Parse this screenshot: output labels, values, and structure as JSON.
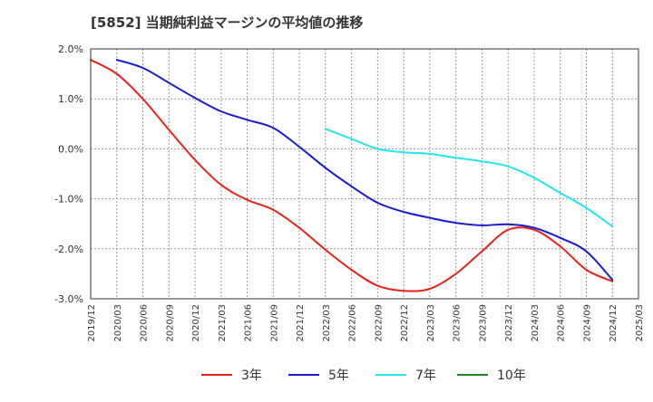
{
  "chart_data": {
    "type": "line",
    "title": "[5852]  当期純利益マージンの平均値の推移",
    "x_ticks": [
      "2019/12",
      "2020/03",
      "2020/06",
      "2020/09",
      "2020/12",
      "2021/03",
      "2021/06",
      "2021/09",
      "2021/12",
      "2022/03",
      "2022/06",
      "2022/09",
      "2022/12",
      "2023/03",
      "2023/06",
      "2023/09",
      "2023/12",
      "2024/03",
      "2024/06",
      "2024/09",
      "2024/12",
      "2025/03"
    ],
    "y_ticks": [
      "2.0%",
      "1.0%",
      "0.0%",
      "-1.0%",
      "-2.0%",
      "-3.0%"
    ],
    "y_tick_values": [
      2.0,
      1.0,
      0.0,
      -1.0,
      -2.0,
      -3.0
    ],
    "ylim": [
      -3.0,
      2.0
    ],
    "grid": true,
    "legend_position": "bottom",
    "series": [
      {
        "name": "3年",
        "color": "#e8211c",
        "x": [
          "2019/12",
          "2020/03",
          "2020/06",
          "2020/09",
          "2020/12",
          "2021/03",
          "2021/06",
          "2021/09",
          "2021/12",
          "2022/03",
          "2022/06",
          "2022/09",
          "2022/12",
          "2023/03",
          "2023/06",
          "2023/09",
          "2023/12",
          "2024/03",
          "2024/06",
          "2024/09",
          "2024/12"
        ],
        "values": [
          1.78,
          1.5,
          1.0,
          0.38,
          -0.22,
          -0.72,
          -1.02,
          -1.22,
          -1.58,
          -2.02,
          -2.42,
          -2.74,
          -2.84,
          -2.8,
          -2.5,
          -2.05,
          -1.62,
          -1.62,
          -1.95,
          -2.42,
          -2.65
        ]
      },
      {
        "name": "5年",
        "color": "#1a1acc",
        "x": [
          "2020/03",
          "2020/06",
          "2020/09",
          "2020/12",
          "2021/03",
          "2021/06",
          "2021/09",
          "2021/12",
          "2022/03",
          "2022/06",
          "2022/09",
          "2022/12",
          "2023/03",
          "2023/06",
          "2023/09",
          "2023/12",
          "2024/03",
          "2024/06",
          "2024/09",
          "2024/12"
        ],
        "values": [
          1.78,
          1.62,
          1.32,
          1.02,
          0.75,
          0.58,
          0.42,
          0.04,
          -0.38,
          -0.75,
          -1.08,
          -1.26,
          -1.38,
          -1.48,
          -1.53,
          -1.51,
          -1.58,
          -1.78,
          -2.05,
          -2.62
        ]
      },
      {
        "name": "7年",
        "color": "#22e5ee",
        "x": [
          "2022/03",
          "2022/06",
          "2022/09",
          "2022/12",
          "2023/03",
          "2023/06",
          "2023/09",
          "2023/12",
          "2024/03",
          "2024/06",
          "2024/09",
          "2024/12"
        ],
        "values": [
          0.4,
          0.2,
          0.0,
          -0.07,
          -0.1,
          -0.18,
          -0.25,
          -0.35,
          -0.58,
          -0.88,
          -1.18,
          -1.55
        ]
      },
      {
        "name": "10年",
        "color": "#1e8c1e",
        "x": [],
        "values": []
      }
    ]
  }
}
